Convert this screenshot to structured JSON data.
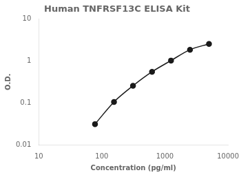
{
  "chart_data": {
    "type": "line",
    "title": "Human TNFRSF13C ELISA Kit",
    "xlabel": "Concentration (pg/ml)",
    "ylabel": "O.D.",
    "x": [
      78,
      156,
      312,
      625,
      1250,
      2500,
      5000
    ],
    "values": [
      0.031,
      0.105,
      0.255,
      0.55,
      1.02,
      1.85,
      2.55
    ],
    "color": "#1a1a1a",
    "marker": "circle",
    "log": true,
    "xlim": [
      10,
      10000
    ],
    "ylim": [
      0.01,
      10
    ],
    "xticks": [
      10,
      100,
      1000,
      10000
    ],
    "yticks": [
      0.01,
      0.1,
      1,
      10
    ],
    "grid": false
  }
}
